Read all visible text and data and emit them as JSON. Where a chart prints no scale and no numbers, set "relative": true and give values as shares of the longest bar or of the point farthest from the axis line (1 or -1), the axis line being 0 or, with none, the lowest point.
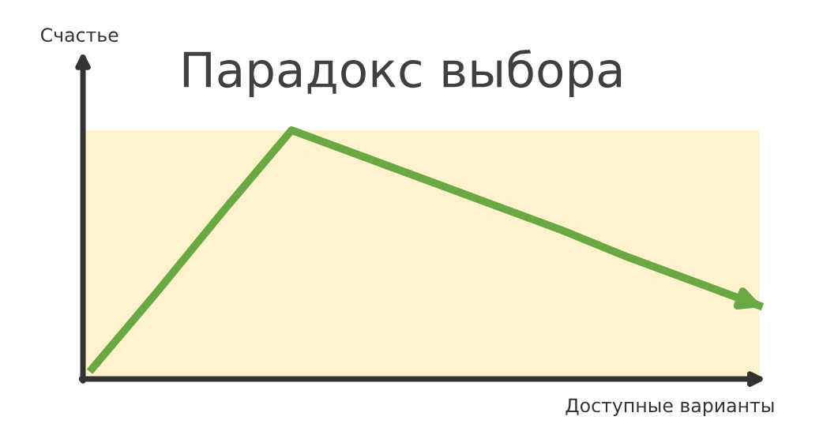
{
  "chart_data": {
    "type": "line",
    "title": "Парадокс выбора",
    "xlabel": "Доступные варианты",
    "ylabel": "Счастье",
    "relative": true,
    "categories": [
      null,
      null,
      null,
      null,
      null,
      null,
      null,
      null,
      null,
      null,
      null
    ],
    "series": [
      {
        "color": "#6aa843",
        "values": [
          0.03,
          0.35,
          0.68,
          1,
          0.9,
          0.8,
          0.7,
          0.6,
          0.49,
          0.39,
          0.29
        ]
      }
    ],
    "bands": [
      {
        "axis": "y",
        "from": 0,
        "to": 1,
        "color": "#fff2cc"
      }
    ],
    "grid": false,
    "legend": false,
    "marker": "none",
    "line_style": "solid"
  }
}
